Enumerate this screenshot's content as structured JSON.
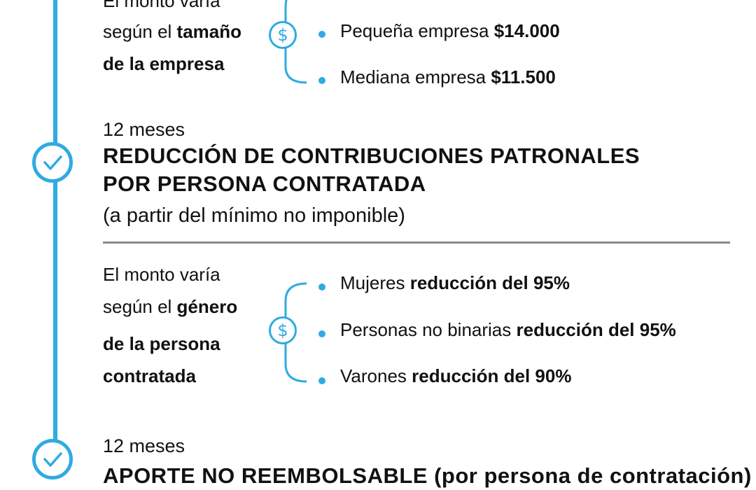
{
  "colors": {
    "accent": "#2eabe2",
    "text": "#111111",
    "divider": "#8a8a8a"
  },
  "block1": {
    "desc_line1": "El monto varía",
    "desc_line2_pre": "según el ",
    "desc_line2_bold": "tamaño",
    "desc_line3_bold": "de la empresa",
    "icon": "dollar-icon",
    "items": [
      {
        "label": "Pequeña empresa ",
        "value": "$14.000"
      },
      {
        "label": "Mediana empresa ",
        "value": "$11.500"
      }
    ]
  },
  "section2": {
    "icon": "check-icon",
    "duration": "12 meses",
    "title_line1": "REDUCCIÓN DE CONTRIBUCIONES PATRONALES",
    "title_line2": "POR PERSONA CONTRATADA",
    "note": "(a partir del mínimo no imponible)"
  },
  "block2": {
    "desc_line1": "El monto varía",
    "desc_line2_pre": "según el ",
    "desc_line2_bold": "género",
    "desc_line3_bold": "de la persona",
    "desc_line4_bold": "contratada",
    "icon": "dollar-icon",
    "items": [
      {
        "label": "Mujeres ",
        "value": "reducción del 95%"
      },
      {
        "label": "Personas no binarias ",
        "value": "reducción del 95%"
      },
      {
        "label": "Varones ",
        "value": "reducción del 90%"
      }
    ]
  },
  "section3": {
    "icon": "check-icon",
    "duration": "12 meses",
    "title_partial": "APORTE NO REEMBOLSABLE (por persona de contratación)"
  }
}
